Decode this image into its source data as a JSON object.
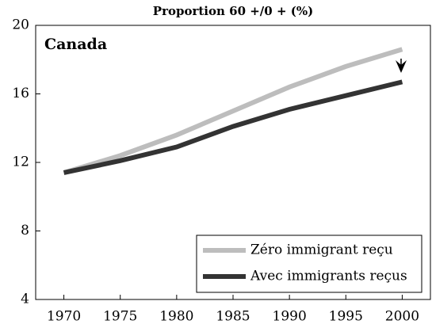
{
  "chart_data": {
    "type": "line",
    "title": "Proportion 60 +/0 + (%)",
    "annotation": "Canada",
    "x": [
      1970,
      1975,
      1980,
      1985,
      1990,
      1995,
      2000
    ],
    "series": [
      {
        "name": "Zéro immigrant reçu",
        "color": "#bdbdbd",
        "values": [
          11.4,
          12.4,
          13.6,
          15.0,
          16.4,
          17.6,
          18.6
        ]
      },
      {
        "name": "Avec immigrants reçus",
        "color": "#333333",
        "values": [
          11.4,
          12.1,
          12.9,
          14.1,
          15.1,
          15.9,
          16.7
        ]
      }
    ],
    "xlim": [
      1967.5,
      2002.5
    ],
    "xticks": [
      1970,
      1975,
      1980,
      1985,
      1990,
      1995,
      2000
    ],
    "ylim": [
      4,
      20
    ],
    "yticks": [
      4,
      8,
      12,
      16,
      20
    ],
    "legend": "lower right"
  }
}
